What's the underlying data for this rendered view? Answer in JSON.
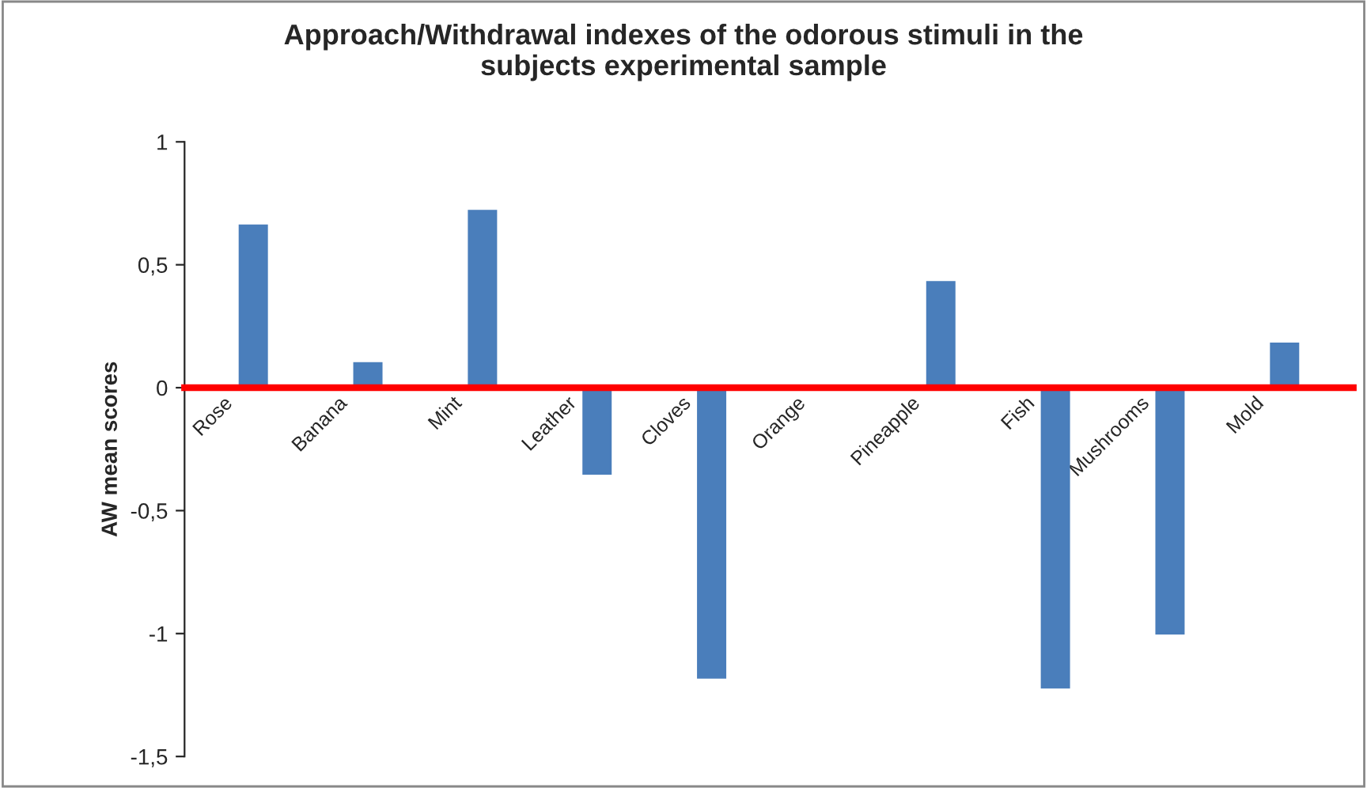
{
  "chart_data": {
    "type": "bar",
    "title": "Approach/Withdrawal indexes of the odorous stimuli in the\nsubjects experimental sample",
    "ylabel": "AW mean scores",
    "categories": [
      "Rose",
      "Banana",
      "Mint",
      "Leather",
      "Cloves",
      "Orange",
      "Pineapple",
      "Fish",
      "Mushrooms",
      "Mold"
    ],
    "values": [
      0.66,
      0.1,
      0.72,
      -0.35,
      -1.18,
      0,
      0.43,
      -1.22,
      -1.0,
      0.18
    ],
    "color": "#4a7ebb",
    "ylim": [
      -1.5,
      1
    ],
    "yticks": [
      {
        "value": -1.5,
        "label": "-1,5"
      },
      {
        "value": -1,
        "label": "-1"
      },
      {
        "value": -0.5,
        "label": "-0,5"
      },
      {
        "value": 0,
        "label": "0"
      },
      {
        "value": 0.5,
        "label": "0,5"
      },
      {
        "value": 1,
        "label": "1"
      }
    ],
    "grid": false,
    "legend": false
  }
}
